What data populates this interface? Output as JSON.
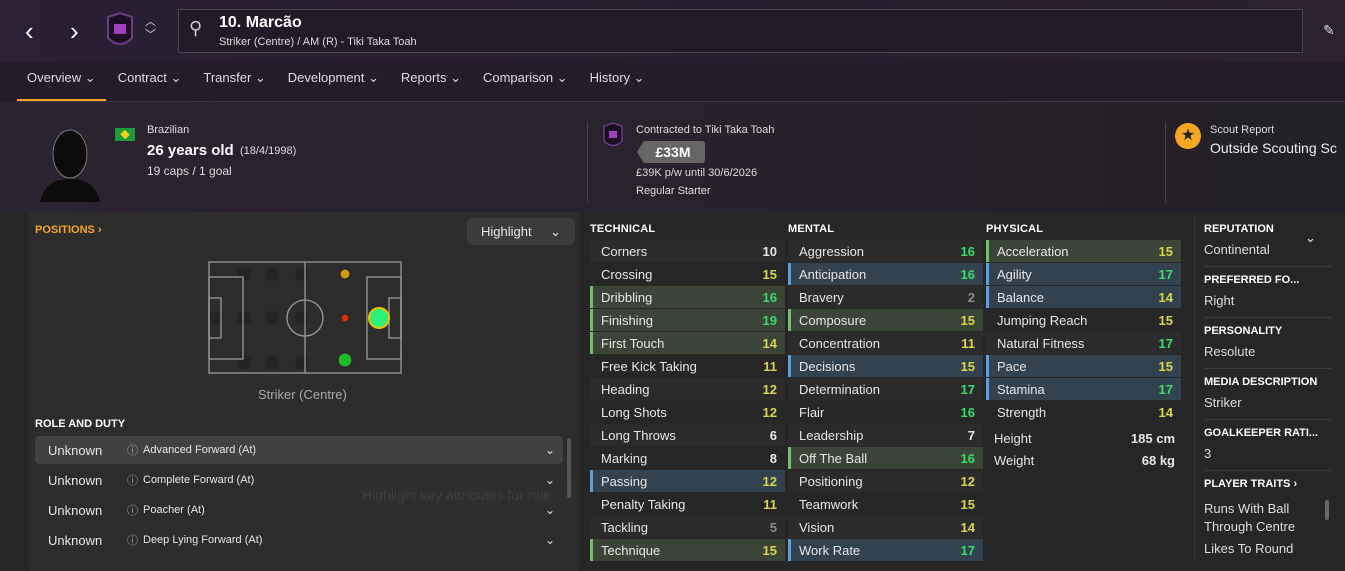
{
  "header": {
    "name": "10. Marcão",
    "subtitle": "Striker (Centre) / AM (R) - Tiki Taka Toah"
  },
  "tabs": [
    {
      "label": "Overview"
    },
    {
      "label": "Contract"
    },
    {
      "label": "Transfer"
    },
    {
      "label": "Development"
    },
    {
      "label": "Reports"
    },
    {
      "label": "Comparison"
    },
    {
      "label": "History"
    }
  ],
  "profile": {
    "nationality": "Brazilian",
    "age": "26 years old",
    "dob": "(18/4/1998)",
    "caps": "19 caps / 1 goal"
  },
  "contract": {
    "club": "Contracted to Tiki Taka Toah",
    "value": "£33M",
    "wage": "£39K p/w until 30/6/2026",
    "status": "Regular Starter"
  },
  "scout": {
    "label": "Scout Report",
    "value": "Outside Scouting Sc"
  },
  "positions": {
    "title": "POSITIONS",
    "highlight": "Highlight",
    "current": "Striker (Centre)",
    "tooltip": "Highlight key attributes for role"
  },
  "roles": {
    "title": "ROLE AND DUTY",
    "items": [
      {
        "ability": "Unknown",
        "name": "Advanced Forward (At)"
      },
      {
        "ability": "Unknown",
        "name": "Complete Forward (At)"
      },
      {
        "ability": "Unknown",
        "name": "Poacher (At)"
      },
      {
        "ability": "Unknown",
        "name": "Deep Lying Forward (At)"
      }
    ]
  },
  "technical": {
    "title": "TECHNICAL",
    "items": [
      {
        "n": "Corners",
        "v": 10,
        "h": ""
      },
      {
        "n": "Crossing",
        "v": 15,
        "h": ""
      },
      {
        "n": "Dribbling",
        "v": 16,
        "h": "key"
      },
      {
        "n": "Finishing",
        "v": 19,
        "h": "key"
      },
      {
        "n": "First Touch",
        "v": 14,
        "h": "key"
      },
      {
        "n": "Free Kick Taking",
        "v": 11,
        "h": ""
      },
      {
        "n": "Heading",
        "v": 12,
        "h": ""
      },
      {
        "n": "Long Shots",
        "v": 12,
        "h": ""
      },
      {
        "n": "Long Throws",
        "v": 6,
        "h": ""
      },
      {
        "n": "Marking",
        "v": 8,
        "h": ""
      },
      {
        "n": "Passing",
        "v": 12,
        "h": "pref"
      },
      {
        "n": "Penalty Taking",
        "v": 11,
        "h": ""
      },
      {
        "n": "Tackling",
        "v": 5,
        "h": ""
      },
      {
        "n": "Technique",
        "v": 15,
        "h": "key"
      }
    ]
  },
  "mental": {
    "title": "MENTAL",
    "items": [
      {
        "n": "Aggression",
        "v": 16,
        "h": ""
      },
      {
        "n": "Anticipation",
        "v": 16,
        "h": "pref"
      },
      {
        "n": "Bravery",
        "v": 2,
        "h": ""
      },
      {
        "n": "Composure",
        "v": 15,
        "h": "key"
      },
      {
        "n": "Concentration",
        "v": 11,
        "h": ""
      },
      {
        "n": "Decisions",
        "v": 15,
        "h": "pref"
      },
      {
        "n": "Determination",
        "v": 17,
        "h": ""
      },
      {
        "n": "Flair",
        "v": 16,
        "h": ""
      },
      {
        "n": "Leadership",
        "v": 7,
        "h": ""
      },
      {
        "n": "Off The Ball",
        "v": 16,
        "h": "key"
      },
      {
        "n": "Positioning",
        "v": 12,
        "h": ""
      },
      {
        "n": "Teamwork",
        "v": 15,
        "h": ""
      },
      {
        "n": "Vision",
        "v": 14,
        "h": ""
      },
      {
        "n": "Work Rate",
        "v": 17,
        "h": "pref"
      }
    ]
  },
  "physical": {
    "title": "PHYSICAL",
    "items": [
      {
        "n": "Acceleration",
        "v": 15,
        "h": "key"
      },
      {
        "n": "Agility",
        "v": 17,
        "h": "pref"
      },
      {
        "n": "Balance",
        "v": 14,
        "h": "pref"
      },
      {
        "n": "Jumping Reach",
        "v": 15,
        "h": ""
      },
      {
        "n": "Natural Fitness",
        "v": 17,
        "h": ""
      },
      {
        "n": "Pace",
        "v": 15,
        "h": "pref"
      },
      {
        "n": "Stamina",
        "v": 17,
        "h": "pref"
      },
      {
        "n": "Strength",
        "v": 14,
        "h": ""
      }
    ],
    "height_label": "Height",
    "height": "185 cm",
    "weight_label": "Weight",
    "weight": "68 kg"
  },
  "side": [
    {
      "label": "REPUTATION",
      "value": "Continental"
    },
    {
      "label": "PREFERRED FO...",
      "value": "Right"
    },
    {
      "label": "PERSONALITY",
      "value": "Resolute"
    },
    {
      "label": "MEDIA DESCRIPTION",
      "value": "Striker"
    },
    {
      "label": "GOALKEEPER RATI...",
      "value": "3"
    }
  ],
  "traits": {
    "title": "PLAYER TRAITS",
    "items": [
      "Runs With Ball",
      "Through Centre",
      "Likes To Round"
    ]
  },
  "colors": {
    "accent": "#f5a623",
    "key": "#6fc26a",
    "preferred": "#5aa0e0",
    "high": "#3ddc6a",
    "mid": "#d9d64a"
  }
}
